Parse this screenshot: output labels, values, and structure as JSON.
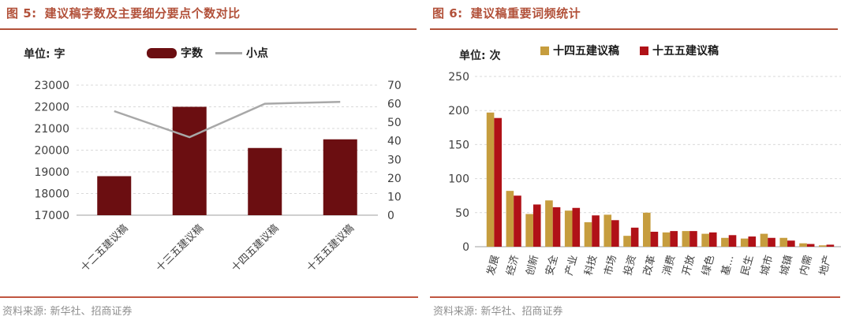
{
  "figure5": {
    "label": "图 5:",
    "title": "建议稿字数及主要细分要点个数对比",
    "unit": "单位: 字",
    "legend": [
      "字数",
      "小点"
    ],
    "source": "资料来源: 新华社、招商证券"
  },
  "figure6": {
    "label": "图 6:",
    "title": "建议稿重要词频统计",
    "unit": "单位: 次",
    "legend": [
      "十四五建议稿",
      "十五五建议稿"
    ],
    "source": "资料来源: 新华社、招商证券"
  },
  "chart_data": [
    {
      "type": "bar+line",
      "title": "建议稿字数及主要细分要点个数对比",
      "categories": [
        "十二五建议稿",
        "十三五建议稿",
        "十四五建议稿",
        "十五五建议稿"
      ],
      "series": [
        {
          "name": "字数",
          "type": "bar",
          "axis": "left",
          "values": [
            18800,
            22000,
            20100,
            20500
          ]
        },
        {
          "name": "小点",
          "type": "line",
          "axis": "right",
          "values": [
            56,
            42,
            60,
            61
          ]
        }
      ],
      "left_axis": {
        "min": 17000,
        "max": 23000,
        "step": 1000
      },
      "right_axis": {
        "min": 0,
        "max": 70,
        "step": 10
      },
      "grid": true,
      "legend_position": "top"
    },
    {
      "type": "bar",
      "title": "建议稿重要词频统计",
      "categories": [
        "发展",
        "经济",
        "创新",
        "安全",
        "产业",
        "科技",
        "市场",
        "投资",
        "改革",
        "消费",
        "开放",
        "绿色",
        "基…",
        "民生",
        "城市",
        "城镇",
        "内需",
        "地产"
      ],
      "series": [
        {
          "name": "十四五建议稿",
          "values": [
            197,
            82,
            48,
            68,
            53,
            36,
            47,
            16,
            50,
            21,
            23,
            19,
            13,
            12,
            19,
            13,
            5,
            2
          ]
        },
        {
          "name": "十五五建议稿",
          "values": [
            189,
            75,
            62,
            58,
            57,
            46,
            39,
            28,
            22,
            23,
            23,
            21,
            17,
            15,
            13,
            9,
            4,
            3
          ]
        }
      ],
      "y_axis": {
        "min": 0,
        "max": 250,
        "step": 50
      },
      "grid": true,
      "legend_position": "top"
    }
  ],
  "colors": {
    "title": "#b2513a",
    "rule": "#c05640",
    "maroon": "#6b0e11",
    "gold": "#c69d3e",
    "red": "#b01117",
    "line_gray": "#a8a8a8",
    "grid": "#d9d9d9",
    "axis_line": "#bfbfbf",
    "axis_text": "#3f3f3f",
    "source_text": "#8f8f8f"
  }
}
